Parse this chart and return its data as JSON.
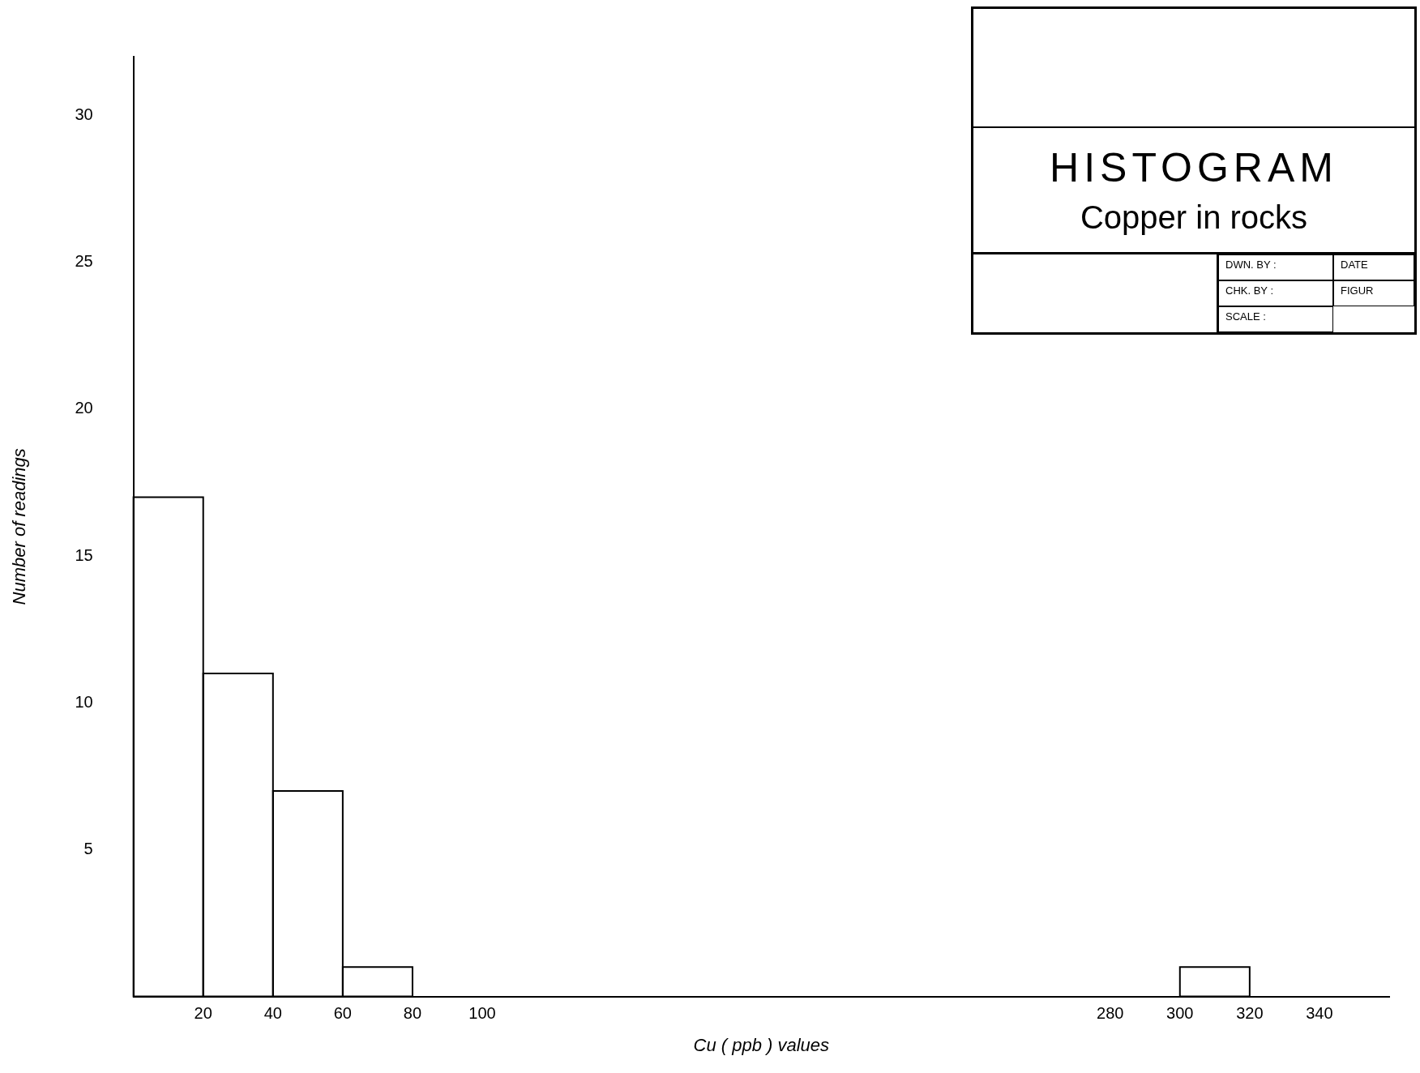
{
  "chart_data": {
    "type": "histogram",
    "title": "HISTOGRAM",
    "subtitle": "Copper in rocks",
    "xlabel": "Cu ( ppb ) values",
    "ylabel": "Number of readings",
    "bins": [
      0,
      20,
      40,
      60,
      80,
      100,
      120,
      140,
      160,
      180,
      200,
      220,
      240,
      260,
      280,
      300,
      320
    ],
    "values": [
      17,
      11,
      7,
      1,
      0,
      0,
      0,
      0,
      0,
      0,
      0,
      0,
      0,
      0,
      0,
      1
    ],
    "color": "#000000",
    "xlim": [
      0,
      360
    ],
    "xticks": [
      20,
      40,
      60,
      80,
      100,
      280,
      300,
      320,
      340
    ],
    "ylim": [
      0,
      32
    ],
    "yticks": [
      5,
      10,
      15,
      20,
      25,
      30
    ],
    "grid": false,
    "annotations": [
      "DWN. BY :",
      "CHK. BY :",
      "SCALE :",
      "DATE",
      "FIGUR"
    ]
  }
}
